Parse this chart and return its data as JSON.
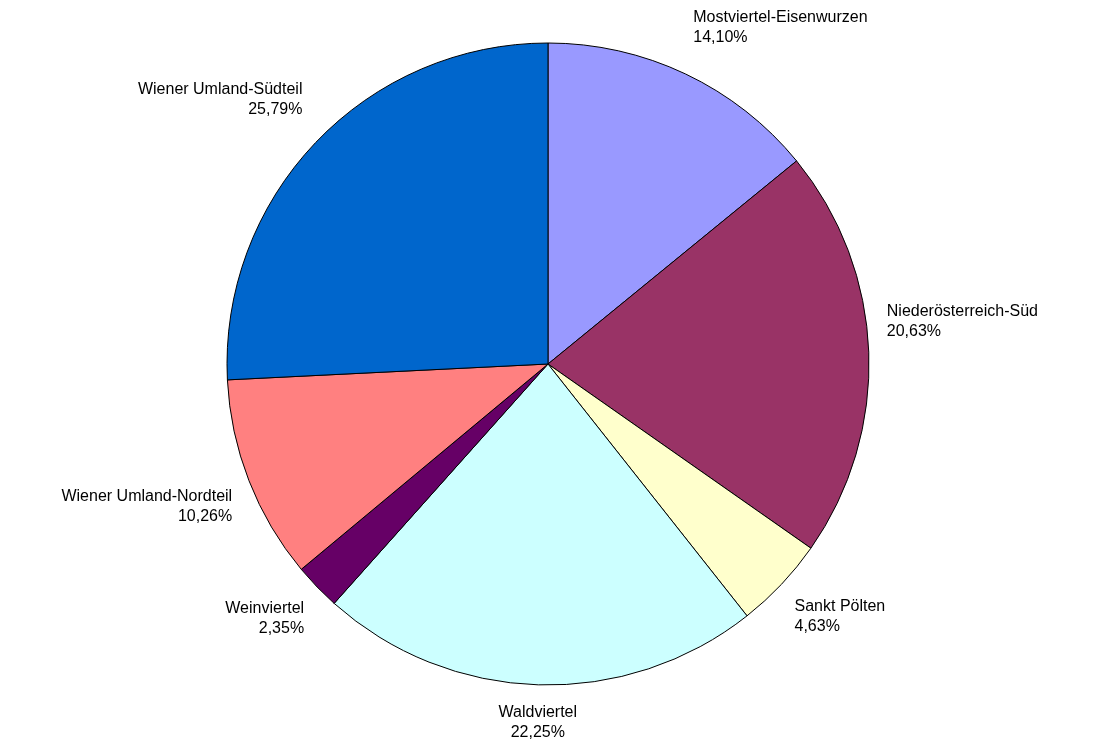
{
  "chart_data": {
    "type": "pie",
    "categories": [
      "Mostviertel-Eisenwurzen",
      "Niederösterreich-Süd",
      "Sankt Pölten",
      "Waldviertel",
      "Weinviertel",
      "Wiener Umland-Nordteil",
      "Wiener Umland-Südteil"
    ],
    "values": [
      14.1,
      20.63,
      4.63,
      22.25,
      2.35,
      10.26,
      25.79
    ],
    "value_labels": [
      "14,10%",
      "20,63%",
      "4,63%",
      "22,25%",
      "2,35%",
      "10,26%",
      "25,79%"
    ],
    "colors": [
      "#9999ff",
      "#993366",
      "#ffffcc",
      "#ccffff",
      "#660066",
      "#ff8080",
      "#0066cc"
    ]
  }
}
